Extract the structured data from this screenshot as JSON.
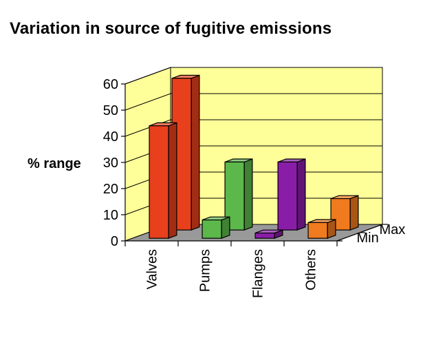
{
  "chart_data": {
    "type": "bar",
    "title": "Variation in source of fugitive emissions",
    "ylabel": "% range",
    "xlabel": "",
    "ylim": [
      0,
      60
    ],
    "yticks": [
      0,
      10,
      20,
      30,
      40,
      50,
      60
    ],
    "categories": [
      "Valves",
      "Pumps",
      "Flanges",
      "Others"
    ],
    "series": [
      {
        "name": "Min",
        "values": [
          43,
          7,
          2,
          6
        ]
      },
      {
        "name": "Max",
        "values": [
          58,
          26,
          26,
          12
        ]
      }
    ],
    "colors": {
      "Valves": "#e8401c",
      "Pumps": "#5cb84a",
      "Flanges": "#8a1da8",
      "Others": "#f07a1e",
      "wall": "#ffff99",
      "floor": "#999999"
    },
    "grid": true,
    "three_d": true
  }
}
